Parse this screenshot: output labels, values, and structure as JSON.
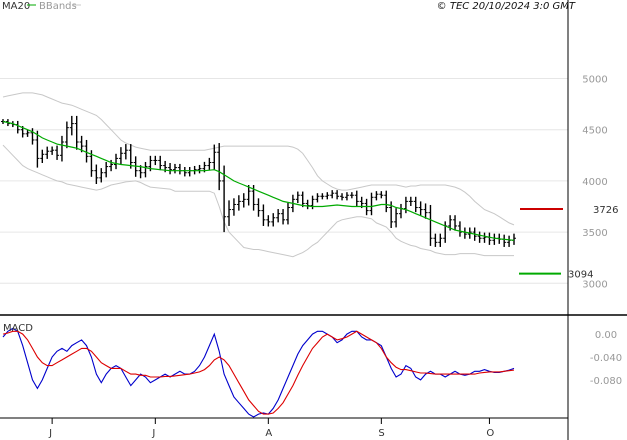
{
  "header": {
    "legend_ma": "MA20",
    "legend_bbands": "BBands",
    "copyright": "© TEC 20/10/2024 3:0 GMT"
  },
  "colors": {
    "price_bar": "#000000",
    "ma20": "#00aa00",
    "bbands": "#c8c8c8",
    "macd": "#0000cc",
    "signal": "#dd0000",
    "resistance": "#cc0000",
    "support": "#00aa00",
    "grid": "#e6e6e6",
    "frame": "#000000"
  },
  "chart_data": [
    {
      "type": "ohlc",
      "ylim": [
        2700,
        5650
      ],
      "yticks": [
        {
          "value": 3000,
          "label": "3000"
        },
        {
          "value": 3500,
          "label": "3500"
        },
        {
          "value": 4000,
          "label": "4000"
        },
        {
          "value": 4500,
          "label": "4500"
        },
        {
          "value": 5000,
          "label": "5000"
        }
      ],
      "x_labels": [
        {
          "index": 10,
          "label": "J"
        },
        {
          "index": 31,
          "label": "J"
        },
        {
          "index": 54,
          "label": "A"
        },
        {
          "index": 77,
          "label": "S"
        },
        {
          "index": 99,
          "label": "O"
        }
      ],
      "closes": [
        4580,
        4560,
        4550,
        4500,
        4460,
        4470,
        4400,
        4220,
        4260,
        4290,
        4300,
        4250,
        4380,
        4520,
        4560,
        4380,
        4340,
        4240,
        4100,
        4030,
        4080,
        4140,
        4160,
        4220,
        4270,
        4300,
        4180,
        4100,
        4080,
        4140,
        4200,
        4200,
        4150,
        4130,
        4110,
        4130,
        4100,
        4080,
        4100,
        4110,
        4120,
        4150,
        4180,
        4280,
        4000,
        3650,
        3720,
        3770,
        3800,
        3820,
        3900,
        3770,
        3710,
        3620,
        3600,
        3640,
        3680,
        3620,
        3740,
        3820,
        3860,
        3780,
        3760,
        3820,
        3850,
        3850,
        3860,
        3880,
        3850,
        3840,
        3860,
        3860,
        3800,
        3780,
        3710,
        3840,
        3870,
        3860,
        3740,
        3600,
        3680,
        3730,
        3800,
        3800,
        3740,
        3720,
        3690,
        3440,
        3400,
        3440,
        3560,
        3620,
        3560,
        3500,
        3480,
        3500,
        3460,
        3440,
        3450,
        3420,
        3440,
        3430,
        3400,
        3420,
        3440
      ],
      "ranges": [
        80,
        80,
        80,
        120,
        120,
        100,
        150,
        300,
        150,
        150,
        120,
        150,
        200,
        200,
        250,
        250,
        200,
        200,
        200,
        200,
        150,
        150,
        150,
        150,
        200,
        200,
        200,
        200,
        180,
        150,
        150,
        150,
        150,
        150,
        150,
        120,
        120,
        120,
        120,
        120,
        120,
        120,
        150,
        250,
        300,
        500,
        300,
        200,
        200,
        200,
        200,
        200,
        200,
        200,
        150,
        150,
        150,
        150,
        150,
        150,
        120,
        120,
        120,
        120,
        100,
        100,
        100,
        100,
        100,
        100,
        100,
        100,
        150,
        150,
        150,
        150,
        100,
        100,
        150,
        200,
        180,
        150,
        150,
        150,
        150,
        200,
        200,
        250,
        150,
        150,
        150,
        150,
        150,
        150,
        150,
        150,
        150,
        150,
        150,
        150,
        150,
        150,
        150,
        150,
        150
      ],
      "ma20": [
        4580,
        4570,
        4560,
        4540,
        4520,
        4500,
        4480,
        4450,
        4420,
        4400,
        4380,
        4360,
        4350,
        4340,
        4330,
        4320,
        4300,
        4280,
        4260,
        4240,
        4220,
        4200,
        4180,
        4170,
        4160,
        4155,
        4150,
        4145,
        4140,
        4130,
        4120,
        4115,
        4110,
        4105,
        4100,
        4100,
        4100,
        4100,
        4100,
        4100,
        4100,
        4100,
        4105,
        4110,
        4090,
        4060,
        4030,
        4000,
        3980,
        3960,
        3940,
        3920,
        3900,
        3880,
        3860,
        3840,
        3820,
        3800,
        3790,
        3780,
        3770,
        3760,
        3755,
        3750,
        3750,
        3750,
        3755,
        3760,
        3765,
        3760,
        3755,
        3750,
        3750,
        3750,
        3750,
        3750,
        3760,
        3770,
        3770,
        3760,
        3740,
        3730,
        3720,
        3700,
        3680,
        3660,
        3640,
        3620,
        3600,
        3580,
        3560,
        3540,
        3520,
        3510,
        3500,
        3490,
        3480,
        3470,
        3460,
        3450,
        3440,
        3435,
        3430,
        3425,
        3420
      ],
      "bb_upper": [
        4820,
        4830,
        4840,
        4850,
        4860,
        4860,
        4860,
        4850,
        4840,
        4820,
        4800,
        4780,
        4760,
        4750,
        4740,
        4720,
        4700,
        4680,
        4660,
        4640,
        4600,
        4550,
        4500,
        4450,
        4400,
        4370,
        4350,
        4330,
        4320,
        4310,
        4300,
        4300,
        4300,
        4300,
        4300,
        4300,
        4300,
        4300,
        4300,
        4300,
        4300,
        4300,
        4310,
        4320,
        4330,
        4340,
        4340,
        4340,
        4340,
        4340,
        4340,
        4340,
        4340,
        4340,
        4340,
        4340,
        4340,
        4340,
        4340,
        4330,
        4310,
        4270,
        4200,
        4130,
        4050,
        4000,
        3970,
        3940,
        3920,
        3910,
        3910,
        3920,
        3930,
        3940,
        3950,
        3960,
        3960,
        3960,
        3960,
        3960,
        3960,
        3950,
        3940,
        3950,
        3950,
        3960,
        3960,
        3960,
        3960,
        3960,
        3960,
        3950,
        3940,
        3920,
        3890,
        3850,
        3800,
        3760,
        3720,
        3700,
        3680,
        3650,
        3620,
        3590,
        3570
      ],
      "bb_lower": [
        4350,
        4300,
        4250,
        4200,
        4150,
        4120,
        4100,
        4080,
        4060,
        4040,
        4020,
        4000,
        3990,
        3970,
        3960,
        3950,
        3940,
        3930,
        3920,
        3910,
        3920,
        3940,
        3960,
        3970,
        3980,
        3990,
        3995,
        4000,
        3985,
        3960,
        3940,
        3935,
        3930,
        3925,
        3920,
        3900,
        3900,
        3900,
        3900,
        3900,
        3900,
        3900,
        3900,
        3880,
        3750,
        3600,
        3500,
        3450,
        3400,
        3350,
        3340,
        3330,
        3330,
        3320,
        3310,
        3300,
        3290,
        3280,
        3270,
        3260,
        3280,
        3300,
        3330,
        3370,
        3400,
        3450,
        3500,
        3550,
        3600,
        3620,
        3630,
        3640,
        3650,
        3650,
        3640,
        3630,
        3590,
        3570,
        3550,
        3500,
        3440,
        3410,
        3390,
        3370,
        3360,
        3340,
        3330,
        3320,
        3300,
        3290,
        3280,
        3280,
        3280,
        3290,
        3290,
        3290,
        3290,
        3280,
        3270,
        3270,
        3270,
        3270,
        3270,
        3270,
        3270
      ],
      "levels": [
        {
          "value": 3726,
          "label": "3726",
          "kind": "resistance"
        },
        {
          "value": 3094,
          "label": "3094",
          "kind": "support"
        }
      ]
    },
    {
      "type": "line",
      "title": "MACD",
      "ylim": [
        -145,
        30
      ],
      "yticks": [
        {
          "value": 0,
          "label": "0.00"
        },
        {
          "value": -40,
          "label": "-0.040"
        },
        {
          "value": -80,
          "label": "-0.080"
        }
      ],
      "series": [
        {
          "key": "macd",
          "values": [
            -5,
            5,
            10,
            5,
            -20,
            -50,
            -80,
            -95,
            -80,
            -60,
            -40,
            -30,
            -25,
            -30,
            -20,
            -15,
            -10,
            -20,
            -40,
            -70,
            -85,
            -70,
            -60,
            -55,
            -60,
            -75,
            -90,
            -80,
            -70,
            -75,
            -85,
            -80,
            -75,
            -70,
            -75,
            -70,
            -65,
            -70,
            -70,
            -65,
            -55,
            -40,
            -20,
            0,
            -30,
            -70,
            -90,
            -110,
            -120,
            -130,
            -140,
            -145,
            -140,
            -138,
            -140,
            -130,
            -115,
            -95,
            -75,
            -55,
            -35,
            -20,
            -10,
            0,
            5,
            5,
            0,
            -5,
            -15,
            -10,
            0,
            5,
            5,
            -5,
            -10,
            -10,
            -15,
            -20,
            -40,
            -60,
            -75,
            -70,
            -55,
            -60,
            -75,
            -80,
            -70,
            -65,
            -70,
            -70,
            -75,
            -70,
            -65,
            -70,
            -72,
            -70,
            -65,
            -65,
            -62,
            -65,
            -67,
            -67,
            -65,
            -63,
            -60
          ],
          "name": ""
        },
        {
          "key": "signal",
          "values": [
            0,
            2,
            5,
            5,
            0,
            -10,
            -25,
            -40,
            -50,
            -55,
            -55,
            -50,
            -45,
            -40,
            -35,
            -30,
            -25,
            -25,
            -30,
            -40,
            -50,
            -55,
            -60,
            -60,
            -60,
            -65,
            -70,
            -70,
            -72,
            -72,
            -75,
            -75,
            -75,
            -74,
            -74,
            -73,
            -72,
            -71,
            -70,
            -68,
            -66,
            -62,
            -55,
            -45,
            -40,
            -45,
            -55,
            -70,
            -85,
            -100,
            -115,
            -125,
            -135,
            -140,
            -140,
            -138,
            -130,
            -120,
            -105,
            -90,
            -72,
            -55,
            -40,
            -25,
            -15,
            -5,
            0,
            -5,
            -10,
            -8,
            -5,
            0,
            5,
            0,
            -5,
            -10,
            -15,
            -25,
            -40,
            -50,
            -58,
            -62,
            -62,
            -64,
            -66,
            -68,
            -68,
            -69,
            -70,
            -70,
            -70,
            -70,
            -70,
            -70,
            -70,
            -70,
            -70,
            -68,
            -67,
            -66,
            -66,
            -66,
            -65,
            -64,
            -63
          ],
          "name": ""
        }
      ]
    }
  ]
}
